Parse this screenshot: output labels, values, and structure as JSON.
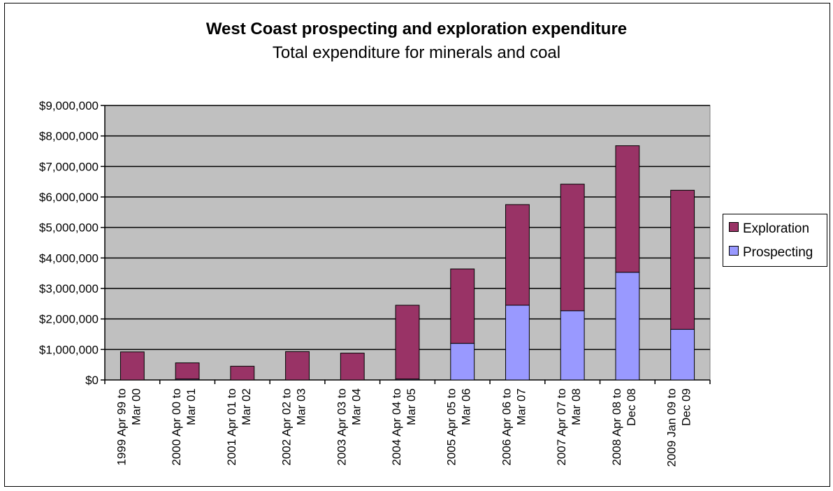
{
  "chart_data": {
    "type": "bar",
    "stacked": true,
    "title": "West Coast prospecting and exploration expenditure",
    "subtitle": "Total expenditure for minerals and coal",
    "xlabel": "",
    "ylabel": "",
    "ylim": [
      0,
      9000000
    ],
    "ytick_labels": [
      "$0",
      "$1,000,000",
      "$2,000,000",
      "$3,000,000",
      "$4,000,000",
      "$5,000,000",
      "$6,000,000",
      "$7,000,000",
      "$8,000,000",
      "$9,000,000"
    ],
    "grid": true,
    "legend_position": "right",
    "categories": [
      [
        "1999 Apr 99 to",
        "Mar 00"
      ],
      [
        "2000 Apr 00 to",
        "Mar 01"
      ],
      [
        "2001 Apr 01 to",
        "Mar 02"
      ],
      [
        "2002 Apr 02 to",
        "Mar 03"
      ],
      [
        "2003 Apr 03 to",
        "Mar 04"
      ],
      [
        "2004 Apr 04 to",
        "Mar 05"
      ],
      [
        "2005 Apr 05 to",
        "Mar 06"
      ],
      [
        "2006 Apr 06 to",
        "Mar 07"
      ],
      [
        "2007 Apr 07 to",
        "Mar 08"
      ],
      [
        "2008 Apr 08 to",
        "Dec 08"
      ],
      [
        "2009 Jan 09 to",
        "Dec 09"
      ]
    ],
    "series": [
      {
        "name": "Prospecting",
        "color": "#9999ff",
        "values": [
          0,
          30000,
          0,
          0,
          0,
          30000,
          1200000,
          2450000,
          2270000,
          3530000,
          1660000
        ]
      },
      {
        "name": "Exploration",
        "color": "#993366",
        "values": [
          920000,
          530000,
          450000,
          930000,
          880000,
          2420000,
          2440000,
          3300000,
          4150000,
          4150000,
          4560000
        ]
      }
    ],
    "plot_background": "#c0c0c0",
    "legend_order": [
      "Exploration",
      "Prospecting"
    ]
  }
}
